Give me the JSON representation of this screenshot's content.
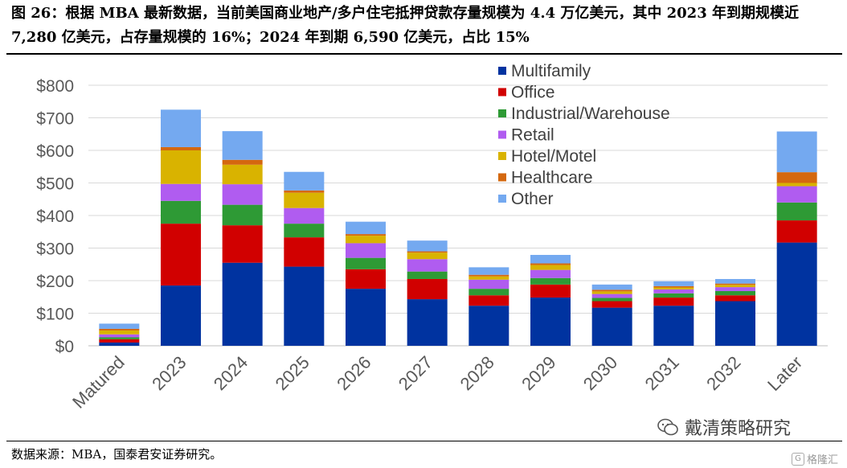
{
  "header": {
    "title": "图 26：根据 MBA 最新数据，当前美国商业地产/多户住宅抵押贷款存量规模为 4.4 万亿美元，其中 2023 年到期规模近 7,280 亿美元，占存量规模的 16%；2024 年到期 6,590 亿美元，占比 15%"
  },
  "footer": {
    "source": "数据来源：MBA，国泰君安证券研究。",
    "watermark": "戴清策略研究",
    "corner_label": "格隆汇"
  },
  "colors": {
    "Multifamily": "#0033a0",
    "Office": "#d10000",
    "Industrial/Warehouse": "#2e9a35",
    "Retail": "#b05cf0",
    "Hotel/Motel": "#d9b300",
    "Healthcare": "#d4680f",
    "Other": "#74a9f0"
  },
  "chart_data": {
    "type": "bar",
    "stacked": true,
    "categories": [
      "Matured",
      "2023",
      "2024",
      "2025",
      "2026",
      "2027",
      "2028",
      "2029",
      "2030",
      "2031",
      "2032",
      "Later"
    ],
    "series": [
      {
        "name": "Multifamily",
        "values": [
          10,
          185,
          255,
          243,
          175,
          143,
          123,
          148,
          117,
          123,
          137,
          317
        ]
      },
      {
        "name": "Office",
        "values": [
          10,
          190,
          115,
          90,
          60,
          62,
          32,
          40,
          20,
          25,
          18,
          68
        ]
      },
      {
        "name": "Industrial/Warehouse",
        "values": [
          6,
          70,
          63,
          42,
          35,
          23,
          20,
          20,
          10,
          13,
          13,
          55
        ]
      },
      {
        "name": "Retail",
        "values": [
          9,
          52,
          63,
          48,
          45,
          38,
          28,
          25,
          12,
          12,
          12,
          50
        ]
      },
      {
        "name": "Hotel/Motel",
        "values": [
          12,
          103,
          60,
          47,
          23,
          20,
          10,
          15,
          8,
          6,
          7,
          10
        ]
      },
      {
        "name": "Healthcare",
        "values": [
          5,
          10,
          15,
          7,
          5,
          4,
          5,
          5,
          5,
          4,
          4,
          33
        ]
      },
      {
        "name": "Other",
        "values": [
          16,
          115,
          88,
          57,
          38,
          33,
          23,
          26,
          16,
          15,
          14,
          125
        ]
      }
    ],
    "yaxis": {
      "min": 0,
      "max": 800,
      "step": 100,
      "tick_labels": [
        "$0",
        "$100",
        "$200",
        "$300",
        "$400",
        "$500",
        "$600",
        "$700",
        "$800"
      ]
    },
    "grid": true,
    "legend_position": "top-right",
    "xlabel": "",
    "ylabel": ""
  }
}
